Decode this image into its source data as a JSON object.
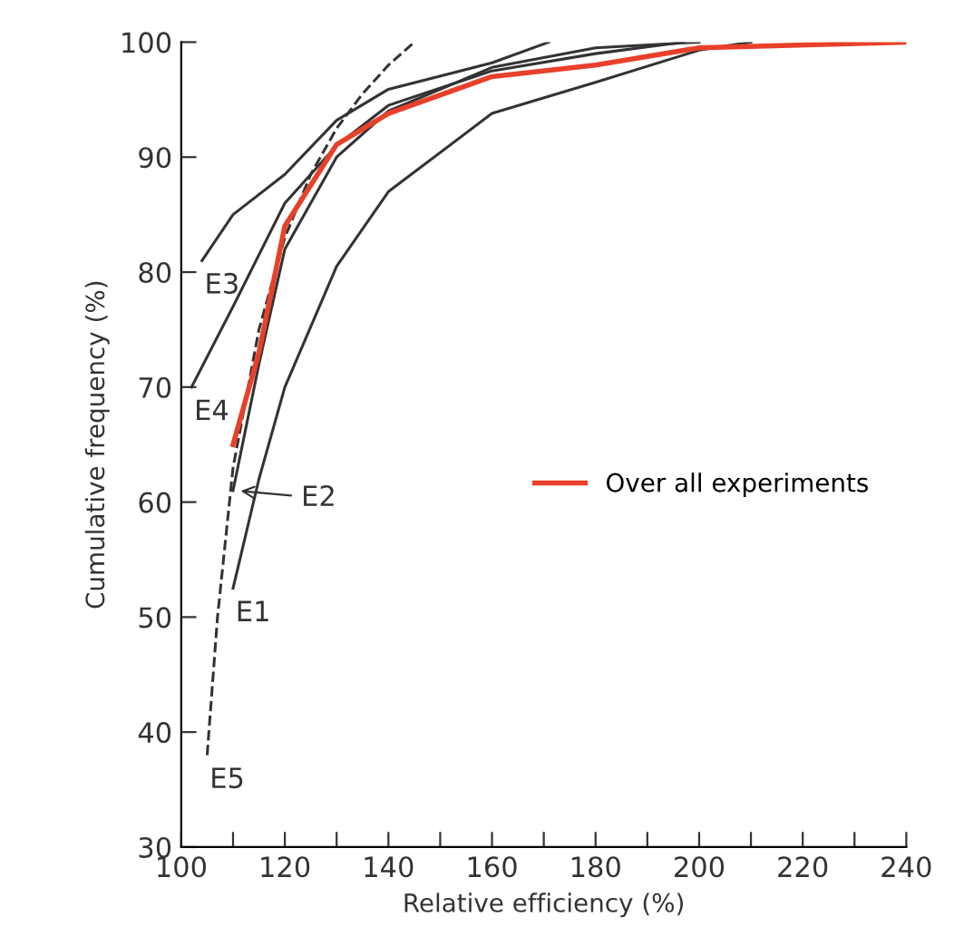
{
  "chart_data": {
    "type": "line",
    "xlabel": "Relative efficiency (%)",
    "ylabel": "Cumulative frequency (%)",
    "xlim": [
      100,
      240
    ],
    "ylim": [
      30,
      100
    ],
    "xticks": [
      100,
      {
        "value": 110,
        "label": null
      },
      120,
      {
        "value": 130,
        "label": null
      },
      140,
      {
        "value": 150,
        "label": null
      },
      160,
      {
        "value": 170,
        "label": null
      },
      180,
      {
        "value": 190,
        "label": null
      },
      200,
      {
        "value": 210,
        "label": null
      },
      220,
      {
        "value": 230,
        "label": null
      },
      240
    ],
    "yticks": [
      30,
      40,
      50,
      60,
      70,
      80,
      90,
      100
    ],
    "grid": false,
    "legend": "right",
    "marker": "none",
    "series": [
      {
        "name": "E1",
        "color": "#333333",
        "x": [
          110,
          115,
          120,
          130,
          140,
          160,
          180,
          200,
          210
        ],
        "values": [
          52.5,
          62,
          70,
          80.5,
          87,
          93.8,
          96.5,
          99.3,
          100
        ]
      },
      {
        "name": "E2",
        "color": "#333333",
        "x": [
          110,
          115,
          120,
          130,
          140,
          160,
          180,
          200
        ],
        "values": [
          61,
          72,
          82,
          90,
          94,
          97.8,
          99.5,
          100
        ]
      },
      {
        "name": "E3",
        "color": "#333333",
        "x": [
          104,
          110,
          120,
          130,
          140,
          160,
          171
        ],
        "values": [
          81,
          85,
          88.5,
          93.2,
          95.9,
          98.2,
          100
        ]
      },
      {
        "name": "E4",
        "color": "#333333",
        "x": [
          102,
          110,
          120,
          130,
          140,
          160,
          180,
          197
        ],
        "values": [
          70,
          77,
          86,
          91,
          94.5,
          97.5,
          99,
          100
        ]
      },
      {
        "name": "E5",
        "color": "#333333",
        "line_style": "dashed",
        "x": [
          105,
          107,
          110,
          115,
          120,
          125,
          130,
          135,
          140,
          145
        ],
        "values": [
          38,
          50,
          63,
          75,
          83,
          88.5,
          92.5,
          95.5,
          98,
          100
        ]
      },
      {
        "name": "Over all experiments",
        "color": "#e8402a",
        "x": [
          110,
          115,
          120,
          130,
          140,
          160,
          180,
          200,
          240
        ],
        "values": [
          65,
          73,
          84,
          91.1,
          93.8,
          97,
          98,
          99.5,
          100
        ]
      }
    ]
  }
}
